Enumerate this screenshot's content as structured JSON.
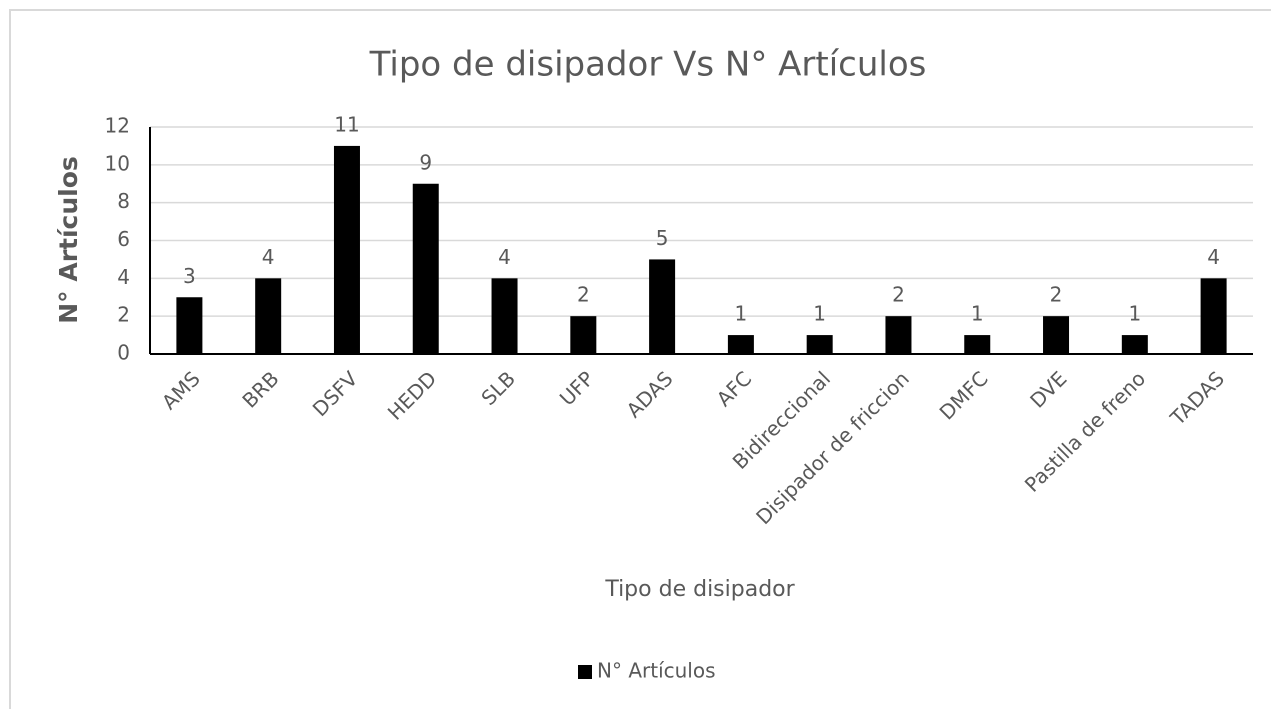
{
  "chart_data": {
    "type": "bar",
    "title": "Tipo de disipador Vs N° Artículos",
    "x_label": "Tipo de disipador",
    "y_label": "N° Artículos",
    "categories": [
      "AMS",
      "BRB",
      "DSFV",
      "HEDD",
      "SLB",
      "UFP",
      "ADAS",
      "AFC",
      "Bidireccional",
      "Disipador de friccion",
      "DMFC",
      "DVE",
      "Pastilla de freno",
      "TADAS"
    ],
    "series": [
      {
        "name": "N° Artículos",
        "color": "#000000",
        "values": [
          3,
          4,
          11,
          9,
          4,
          2,
          5,
          1,
          1,
          2,
          1,
          2,
          1,
          4
        ]
      }
    ],
    "ylim": [
      0,
      12
    ],
    "yticks": [
      0,
      2,
      4,
      6,
      8,
      10,
      12
    ],
    "grid": true,
    "legend": "bottom"
  }
}
